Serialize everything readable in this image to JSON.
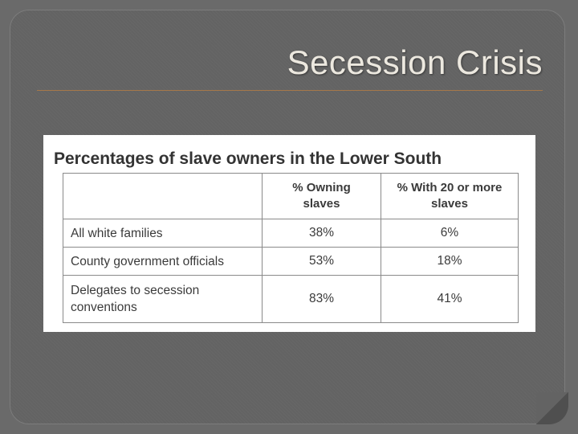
{
  "slide": {
    "title": "Secession Crisis"
  },
  "figure": {
    "caption": "Percentages of slave owners in the Lower South",
    "columns": [
      "",
      "% Owning slaves",
      "% With 20 or more slaves"
    ],
    "rows": [
      {
        "label": "All white families",
        "owning": "38%",
        "twenty_plus": "6%"
      },
      {
        "label": "County government officials",
        "owning": "53%",
        "twenty_plus": "18%"
      },
      {
        "label": "Delegates to secession conventions",
        "owning": "83%",
        "twenty_plus": "41%"
      }
    ]
  },
  "colors": {
    "background": "#636363",
    "title_text": "#ece8df",
    "rule": "#a6784a"
  }
}
